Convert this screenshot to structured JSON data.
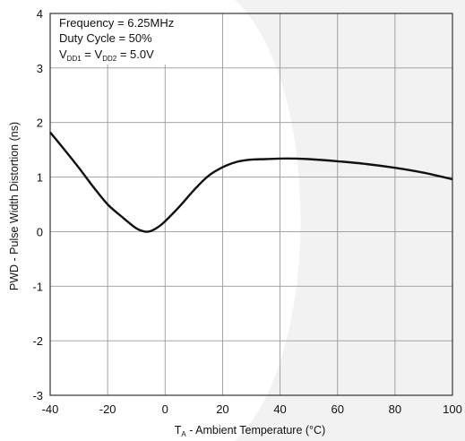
{
  "chart_data": {
    "type": "line",
    "xlabel_main": "T",
    "xlabel_sub": "A",
    "xlabel_rest": " - Ambient Temperature (°C)",
    "ylabel": "PWD - Pulse Width Distortion (ns)",
    "xlim": [
      -40,
      100
    ],
    "ylim": [
      -3,
      4
    ],
    "x_ticks": [
      -40,
      -20,
      0,
      20,
      40,
      60,
      80,
      100
    ],
    "y_ticks": [
      -3,
      -2,
      -1,
      0,
      1,
      2,
      3,
      4
    ],
    "grid": true,
    "annotation": {
      "line1": "Frequency = 6.25MHz",
      "line2": "Duty Cycle = 50%",
      "v1": "V",
      "v1_sub": "DD1",
      "eq": " = ",
      "v2": "V",
      "v2_sub": "DD2",
      "val": " = 5.0V"
    },
    "series": [
      {
        "x": [
          -40,
          -35,
          -30,
          -25,
          -20,
          -15,
          -10,
          -7,
          -5,
          -2,
          0,
          5,
          10,
          15,
          20,
          25,
          30,
          35,
          40,
          45,
          50,
          60,
          70,
          80,
          90,
          100
        ],
        "y": [
          1.82,
          1.5,
          1.17,
          0.82,
          0.5,
          0.27,
          0.06,
          0.0,
          0.01,
          0.1,
          0.19,
          0.46,
          0.76,
          1.02,
          1.18,
          1.28,
          1.32,
          1.33,
          1.34,
          1.34,
          1.33,
          1.29,
          1.24,
          1.17,
          1.08,
          0.96
        ]
      }
    ],
    "colors": {
      "line": "#111111",
      "grid": "#999999",
      "frame": "#333333",
      "watermark": "#f2f2f2"
    }
  }
}
